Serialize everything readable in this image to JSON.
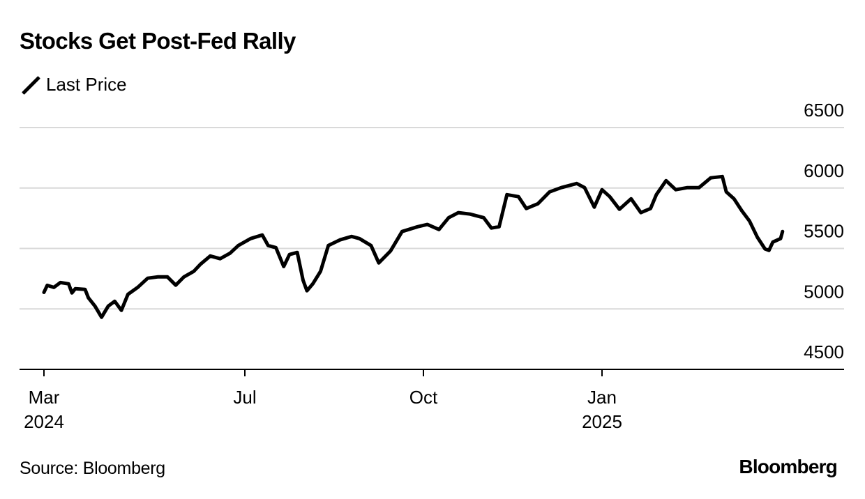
{
  "header": {
    "title": "Stocks Get Post-Fed Rally"
  },
  "legend": {
    "items": [
      {
        "label": "Last Price",
        "color": "#000000"
      }
    ]
  },
  "footer": {
    "source": "Source: Bloomberg",
    "brand": "Bloomberg"
  },
  "chart_data": {
    "type": "line",
    "title": "Stocks Get Post-Fed Rally",
    "xlabel": "",
    "ylabel": "",
    "ylim": [
      4500,
      6500
    ],
    "yticks": [
      4500,
      5000,
      5500,
      6000,
      6500
    ],
    "grid": true,
    "legend_position": "top-left",
    "xticks": [
      {
        "label": "Mar",
        "sublabel": "2024",
        "date": "2024-03-01"
      },
      {
        "label": "Jul",
        "sublabel": "",
        "date": "2024-07-01"
      },
      {
        "label": "Oct",
        "sublabel": "",
        "date": "2024-10-01"
      },
      {
        "label": "Jan",
        "sublabel": "2025",
        "date": "2025-01-01"
      }
    ],
    "series": [
      {
        "name": "Last Price",
        "color": "#000000",
        "points": [
          [
            "2024-03-01",
            5137
          ],
          [
            "2024-03-03",
            5195
          ],
          [
            "2024-03-07",
            5178
          ],
          [
            "2024-03-11",
            5218
          ],
          [
            "2024-03-16",
            5207
          ],
          [
            "2024-03-18",
            5132
          ],
          [
            "2024-03-20",
            5167
          ],
          [
            "2024-03-26",
            5161
          ],
          [
            "2024-03-28",
            5092
          ],
          [
            "2024-04-01",
            5023
          ],
          [
            "2024-04-05",
            4931
          ],
          [
            "2024-04-09",
            5023
          ],
          [
            "2024-04-13",
            5063
          ],
          [
            "2024-04-17",
            4988
          ],
          [
            "2024-04-21",
            5121
          ],
          [
            "2024-04-27",
            5179
          ],
          [
            "2024-05-03",
            5254
          ],
          [
            "2024-05-09",
            5265
          ],
          [
            "2024-05-15",
            5265
          ],
          [
            "2024-05-20",
            5196
          ],
          [
            "2024-05-25",
            5265
          ],
          [
            "2024-05-31",
            5311
          ],
          [
            "2024-06-04",
            5369
          ],
          [
            "2024-06-10",
            5438
          ],
          [
            "2024-06-16",
            5415
          ],
          [
            "2024-06-22",
            5461
          ],
          [
            "2024-06-27",
            5524
          ],
          [
            "2024-07-04",
            5582
          ],
          [
            "2024-07-10",
            5611
          ],
          [
            "2024-07-13",
            5524
          ],
          [
            "2024-07-17",
            5507
          ],
          [
            "2024-07-21",
            5351
          ],
          [
            "2024-07-24",
            5450
          ],
          [
            "2024-07-28",
            5467
          ],
          [
            "2024-07-31",
            5236
          ],
          [
            "2024-08-02",
            5150
          ],
          [
            "2024-08-05",
            5207
          ],
          [
            "2024-08-09",
            5311
          ],
          [
            "2024-08-13",
            5524
          ],
          [
            "2024-08-19",
            5571
          ],
          [
            "2024-08-25",
            5599
          ],
          [
            "2024-08-29",
            5582
          ],
          [
            "2024-09-04",
            5524
          ],
          [
            "2024-09-08",
            5380
          ],
          [
            "2024-09-14",
            5478
          ],
          [
            "2024-09-20",
            5640
          ],
          [
            "2024-09-28",
            5680
          ],
          [
            "2024-10-03",
            5698
          ],
          [
            "2024-10-09",
            5657
          ],
          [
            "2024-10-14",
            5755
          ],
          [
            "2024-10-19",
            5796
          ],
          [
            "2024-10-25",
            5784
          ],
          [
            "2024-11-01",
            5755
          ],
          [
            "2024-11-05",
            5669
          ],
          [
            "2024-11-09",
            5680
          ],
          [
            "2024-11-13",
            5945
          ],
          [
            "2024-11-19",
            5928
          ],
          [
            "2024-11-23",
            5830
          ],
          [
            "2024-11-29",
            5870
          ],
          [
            "2024-12-05",
            5968
          ],
          [
            "2024-12-11",
            6003
          ],
          [
            "2024-12-19",
            6037
          ],
          [
            "2024-12-23",
            6003
          ],
          [
            "2024-12-28",
            5842
          ],
          [
            "2025-01-01",
            5986
          ],
          [
            "2025-01-05",
            5928
          ],
          [
            "2025-01-10",
            5824
          ],
          [
            "2025-01-16",
            5911
          ],
          [
            "2025-01-21",
            5796
          ],
          [
            "2025-01-26",
            5830
          ],
          [
            "2025-01-29",
            5945
          ],
          [
            "2025-02-03",
            6061
          ],
          [
            "2025-02-08",
            5986
          ],
          [
            "2025-02-14",
            6003
          ],
          [
            "2025-02-20",
            6003
          ],
          [
            "2025-02-26",
            6084
          ],
          [
            "2025-03-04",
            6095
          ],
          [
            "2025-03-06",
            5968
          ],
          [
            "2025-03-10",
            5911
          ],
          [
            "2025-03-14",
            5813
          ],
          [
            "2025-03-18",
            5726
          ],
          [
            "2025-03-22",
            5594
          ],
          [
            "2025-03-26",
            5496
          ],
          [
            "2025-03-28",
            5484
          ],
          [
            "2025-03-30",
            5553
          ],
          [
            "2025-04-03",
            5582
          ],
          [
            "2025-04-04",
            5640
          ]
        ]
      }
    ]
  }
}
